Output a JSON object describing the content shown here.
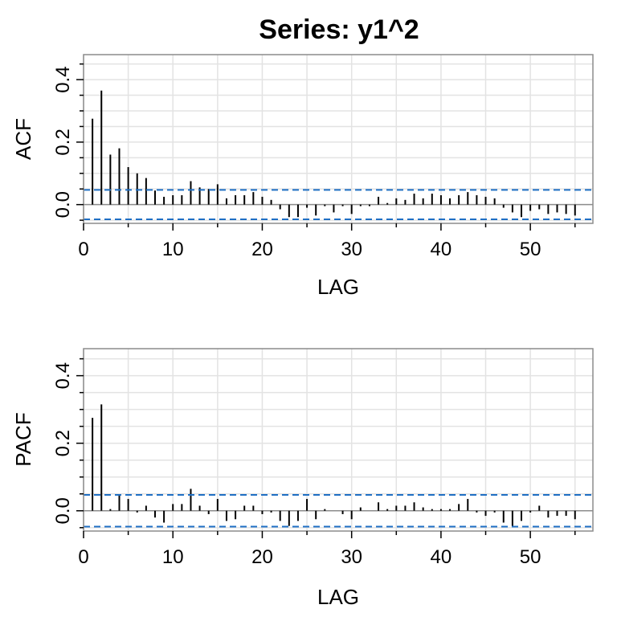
{
  "title": "Series:  y1^2",
  "chart_data": [
    {
      "type": "bar",
      "name": "acf-panel",
      "ylabel": "ACF",
      "xlabel": "LAG",
      "xlim": [
        0,
        57
      ],
      "ylim": [
        -0.06,
        0.48
      ],
      "xticks": [
        0,
        10,
        20,
        30,
        40,
        50
      ],
      "yticks": [
        0.0,
        0.2,
        0.4
      ],
      "ytick_labels": [
        "0.0",
        "0.2",
        "0.4"
      ],
      "grid": true,
      "conf_bound": 0.047,
      "lags": [
        1,
        2,
        3,
        4,
        5,
        6,
        7,
        8,
        9,
        10,
        11,
        12,
        13,
        14,
        15,
        16,
        17,
        18,
        19,
        20,
        21,
        22,
        23,
        24,
        25,
        26,
        27,
        28,
        29,
        30,
        31,
        32,
        33,
        34,
        35,
        36,
        37,
        38,
        39,
        40,
        41,
        42,
        43,
        44,
        45,
        46,
        47,
        48,
        49,
        50,
        51,
        52,
        53,
        54,
        55
      ],
      "values": [
        0.275,
        0.365,
        0.16,
        0.18,
        0.12,
        0.1,
        0.085,
        0.045,
        0.025,
        0.03,
        0.03,
        0.075,
        0.055,
        0.05,
        0.065,
        0.02,
        0.03,
        0.03,
        0.04,
        0.025,
        0.015,
        -0.015,
        -0.04,
        -0.04,
        -0.01,
        -0.035,
        -0.005,
        -0.025,
        -0.005,
        -0.03,
        -0.005,
        -0.005,
        0.025,
        0.005,
        0.02,
        0.015,
        0.035,
        0.02,
        0.035,
        0.03,
        0.02,
        0.03,
        0.04,
        0.03,
        0.025,
        0.02,
        -0.01,
        -0.025,
        -0.04,
        -0.02,
        -0.015,
        -0.03,
        -0.025,
        -0.03,
        -0.035
      ]
    },
    {
      "type": "bar",
      "name": "pacf-panel",
      "ylabel": "PACF",
      "xlabel": "LAG",
      "xlim": [
        0,
        57
      ],
      "ylim": [
        -0.06,
        0.48
      ],
      "xticks": [
        0,
        10,
        20,
        30,
        40,
        50
      ],
      "yticks": [
        0.0,
        0.2,
        0.4
      ],
      "ytick_labels": [
        "0.0",
        "0.2",
        "0.4"
      ],
      "grid": true,
      "conf_bound": 0.047,
      "lags": [
        1,
        2,
        3,
        4,
        5,
        6,
        7,
        8,
        9,
        10,
        11,
        12,
        13,
        14,
        15,
        16,
        17,
        18,
        19,
        20,
        21,
        22,
        23,
        24,
        25,
        26,
        27,
        28,
        29,
        30,
        31,
        32,
        33,
        34,
        35,
        36,
        37,
        38,
        39,
        40,
        41,
        42,
        43,
        44,
        45,
        46,
        47,
        48,
        49,
        50,
        51,
        52,
        53,
        54,
        55
      ],
      "values": [
        0.275,
        0.315,
        0.005,
        0.045,
        0.035,
        -0.005,
        0.015,
        -0.02,
        -0.035,
        0.02,
        0.02,
        0.065,
        0.015,
        -0.01,
        0.035,
        -0.03,
        -0.025,
        0.015,
        0.015,
        -0.01,
        -0.005,
        -0.03,
        -0.045,
        -0.03,
        0.035,
        -0.025,
        0.005,
        0.0,
        -0.01,
        -0.025,
        0.01,
        0.0,
        0.025,
        0.005,
        0.015,
        0.015,
        0.025,
        0.01,
        0.005,
        0.005,
        0.005,
        0.02,
        0.035,
        -0.005,
        -0.015,
        -0.005,
        -0.035,
        -0.045,
        -0.03,
        -0.005,
        0.015,
        -0.02,
        -0.015,
        -0.015,
        -0.025
      ]
    }
  ]
}
